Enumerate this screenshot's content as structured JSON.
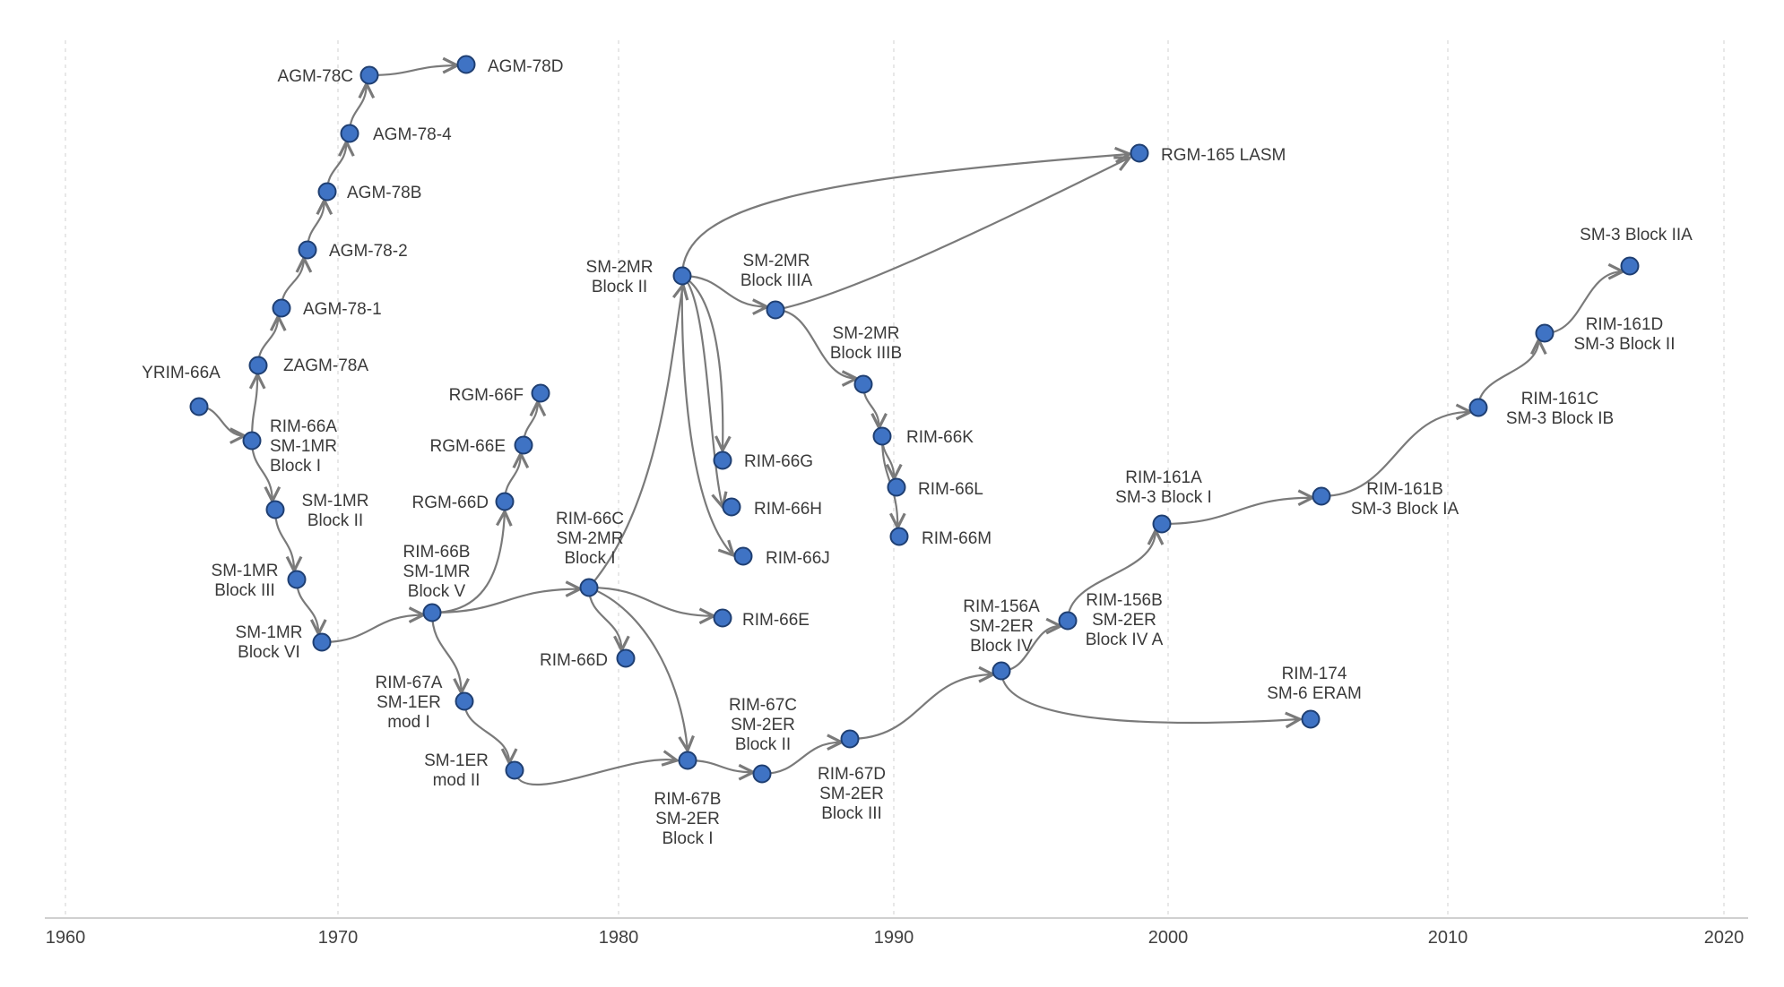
{
  "axis": {
    "ticks": [
      "1960",
      "1970",
      "1980",
      "1990",
      "2000",
      "2010",
      "2020"
    ]
  },
  "colors": {
    "node_fill": "#3f73c4",
    "node_stroke": "#1f3f72",
    "edge": "#7a7a7a",
    "grid": "#dcdcdc"
  },
  "nodes": [
    {
      "id": "yrim66a",
      "label": "YRIM-66A"
    },
    {
      "id": "rim66a",
      "label": "RIM-66A\nSM-1MR\nBlock I"
    },
    {
      "id": "zagm78a",
      "label": "ZAGM-78A"
    },
    {
      "id": "agm781",
      "label": "AGM-78-1"
    },
    {
      "id": "agm782",
      "label": "AGM-78-2"
    },
    {
      "id": "agm78b",
      "label": "AGM-78B"
    },
    {
      "id": "agm784",
      "label": "AGM-78-4"
    },
    {
      "id": "agm78c",
      "label": "AGM-78C"
    },
    {
      "id": "agm78d",
      "label": "AGM-78D"
    },
    {
      "id": "sm1mr2",
      "label": "SM-1MR\nBlock II"
    },
    {
      "id": "sm1mr3",
      "label": "SM-1MR\nBlock III"
    },
    {
      "id": "sm1mr6",
      "label": "SM-1MR\nBlock VI"
    },
    {
      "id": "rim66b",
      "label": "RIM-66B\nSM-1MR\nBlock V"
    },
    {
      "id": "rgm66d",
      "label": "RGM-66D"
    },
    {
      "id": "rgm66e",
      "label": "RGM-66E"
    },
    {
      "id": "rgm66f",
      "label": "RGM-66F"
    },
    {
      "id": "rim67a",
      "label": "RIM-67A\nSM-1ER\nmod I"
    },
    {
      "id": "sm1er2",
      "label": "SM-1ER\nmod II"
    },
    {
      "id": "rim66c",
      "label": "RIM-66C\nSM-2MR\nBlock I"
    },
    {
      "id": "rim66d",
      "label": "RIM-66D"
    },
    {
      "id": "rim66e",
      "label": "RIM-66E"
    },
    {
      "id": "sm2mr2",
      "label": "SM-2MR\nBlock II"
    },
    {
      "id": "sm2mr3a",
      "label": "SM-2MR\nBlock IIIA"
    },
    {
      "id": "sm2mr3b",
      "label": "SM-2MR\nBlock IIIB"
    },
    {
      "id": "rim66g",
      "label": "RIM-66G"
    },
    {
      "id": "rim66h",
      "label": "RIM-66H"
    },
    {
      "id": "rim66j",
      "label": "RIM-66J"
    },
    {
      "id": "rim66k",
      "label": "RIM-66K"
    },
    {
      "id": "rim66l",
      "label": "RIM-66L"
    },
    {
      "id": "rim66m",
      "label": "RIM-66M"
    },
    {
      "id": "rgm165",
      "label": "RGM-165 LASM"
    },
    {
      "id": "rim67b",
      "label": "RIM-67B\nSM-2ER\nBlock I"
    },
    {
      "id": "rim67c",
      "label": "RIM-67C\nSM-2ER\nBlock II"
    },
    {
      "id": "rim67d",
      "label": "RIM-67D\nSM-2ER\nBlock III"
    },
    {
      "id": "rim156a",
      "label": "RIM-156A\nSM-2ER\nBlock IV"
    },
    {
      "id": "rim156b",
      "label": "RIM-156B\nSM-2ER\nBlock IV A"
    },
    {
      "id": "rim174",
      "label": "RIM-174\nSM-6 ERAM"
    },
    {
      "id": "rim161a",
      "label": "RIM-161A\nSM-3 Block I"
    },
    {
      "id": "rim161b",
      "label": "RIM-161B\nSM-3 Block IA"
    },
    {
      "id": "rim161c",
      "label": "RIM-161C\nSM-3 Block IB"
    },
    {
      "id": "rim161d",
      "label": "RIM-161D\nSM-3 Block II"
    },
    {
      "id": "sm3b2a",
      "label": "SM-3 Block IIA"
    }
  ],
  "edges": [
    [
      "yrim66a",
      "rim66a"
    ],
    [
      "rim66a",
      "zagm78a"
    ],
    [
      "zagm78a",
      "agm781"
    ],
    [
      "agm781",
      "agm782"
    ],
    [
      "agm782",
      "agm78b"
    ],
    [
      "agm78b",
      "agm784"
    ],
    [
      "agm784",
      "agm78c"
    ],
    [
      "agm78c",
      "agm78d"
    ],
    [
      "rim66a",
      "sm1mr2"
    ],
    [
      "sm1mr2",
      "sm1mr3"
    ],
    [
      "sm1mr3",
      "sm1mr6"
    ],
    [
      "sm1mr6",
      "rim66b"
    ],
    [
      "rim66b",
      "rgm66d"
    ],
    [
      "rgm66d",
      "rgm66e"
    ],
    [
      "rgm66e",
      "rgm66f"
    ],
    [
      "rim66b",
      "rim67a"
    ],
    [
      "rim67a",
      "sm1er2"
    ],
    [
      "sm1er2",
      "rim67b"
    ],
    [
      "rim66b",
      "rim66c"
    ],
    [
      "rim66c",
      "rim66d"
    ],
    [
      "rim66c",
      "rim66e"
    ],
    [
      "rim66c",
      "sm2mr2"
    ],
    [
      "rim66c",
      "rim67b"
    ],
    [
      "sm2mr2",
      "sm2mr3a"
    ],
    [
      "sm2mr2",
      "rim66g"
    ],
    [
      "sm2mr2",
      "rim66h"
    ],
    [
      "sm2mr2",
      "rim66j"
    ],
    [
      "sm2mr2",
      "rgm165"
    ],
    [
      "sm2mr3a",
      "sm2mr3b"
    ],
    [
      "sm2mr3a",
      "rgm165"
    ],
    [
      "sm2mr3b",
      "rim66k"
    ],
    [
      "rim66k",
      "rim66l"
    ],
    [
      "rim66k",
      "rim66m"
    ],
    [
      "rim67b",
      "rim67c"
    ],
    [
      "rim67c",
      "rim67d"
    ],
    [
      "rim67d",
      "rim156a"
    ],
    [
      "rim156a",
      "rim156b"
    ],
    [
      "rim156a",
      "rim174"
    ],
    [
      "rim156b",
      "rim161a"
    ],
    [
      "rim161a",
      "rim161b"
    ],
    [
      "rim161b",
      "rim161c"
    ],
    [
      "rim161c",
      "rim161d"
    ],
    [
      "rim161d",
      "sm3b2a"
    ]
  ]
}
